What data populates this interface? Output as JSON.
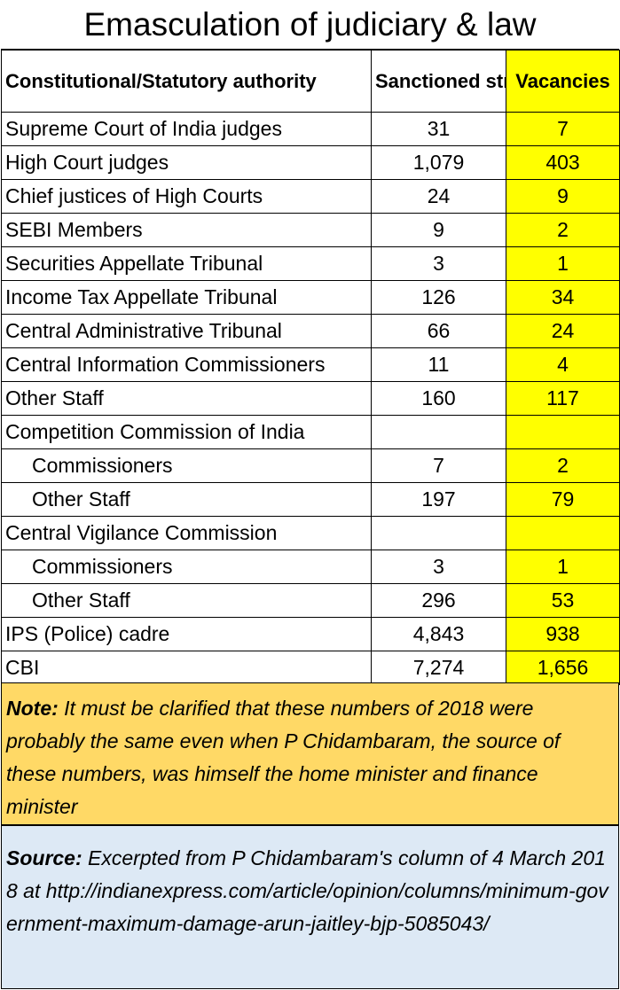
{
  "title": "Emasculation of  judiciary & law",
  "chart_data": {
    "type": "table",
    "columns": [
      "Constitutional/Statutory authority",
      "Sanctioned strength",
      "Vacancies"
    ],
    "rows": [
      {
        "authority": "Supreme Court of India judges",
        "sanctioned": "31",
        "vacancies": "7",
        "indent": false
      },
      {
        "authority": "High Court judges",
        "sanctioned": "1,079",
        "vacancies": "403",
        "indent": false
      },
      {
        "authority": "Chief justices of High Courts",
        "sanctioned": "24",
        "vacancies": "9",
        "indent": false
      },
      {
        "authority": "SEBI Members",
        "sanctioned": "9",
        "vacancies": "2",
        "indent": false
      },
      {
        "authority": "Securities Appellate Tribunal",
        "sanctioned": "3",
        "vacancies": "1",
        "indent": false
      },
      {
        "authority": "Income Tax Appellate Tribunal",
        "sanctioned": "126",
        "vacancies": "34",
        "indent": false
      },
      {
        "authority": "Central Administrative Tribunal",
        "sanctioned": "66",
        "vacancies": "24",
        "indent": false
      },
      {
        "authority": "Central Information Commissioners",
        "sanctioned": "11",
        "vacancies": "4",
        "indent": false
      },
      {
        "authority": "Other Staff",
        "sanctioned": "160",
        "vacancies": "117",
        "indent": false
      },
      {
        "authority": "Competition Commission of India",
        "sanctioned": "",
        "vacancies": "",
        "indent": false
      },
      {
        "authority": "Commissioners",
        "sanctioned": "7",
        "vacancies": "2",
        "indent": true
      },
      {
        "authority": "Other Staff",
        "sanctioned": "197",
        "vacancies": "79",
        "indent": true
      },
      {
        "authority": "Central Vigilance Commission",
        "sanctioned": "",
        "vacancies": "",
        "indent": false
      },
      {
        "authority": "Commissioners",
        "sanctioned": "3",
        "vacancies": "1",
        "indent": true
      },
      {
        "authority": "Other Staff",
        "sanctioned": "296",
        "vacancies": "53",
        "indent": true
      },
      {
        "authority": "IPS (Police) cadre",
        "sanctioned": "4,843",
        "vacancies": "938",
        "indent": false
      },
      {
        "authority": "CBI",
        "sanctioned": "7,274",
        "vacancies": "1,656",
        "indent": false
      }
    ]
  },
  "note": {
    "label": "Note:",
    "text": "It must be clarified that these numbers of 2018 were probably the same even when P Chidambaram, the source of these numbers, was himself the home minister and finance minister"
  },
  "source": {
    "label": "Source:",
    "text": "Excerpted from P Chidambaram's column of 4 March 2018 at http://indianexpress.com/article/opinion/columns/minimum-government-maximum-damage-arun-jaitley-bjp-5085043/"
  },
  "colors": {
    "vacancies_fill": "#ffff00",
    "note_fill": "#ffd966",
    "source_fill": "#dde9f5"
  }
}
